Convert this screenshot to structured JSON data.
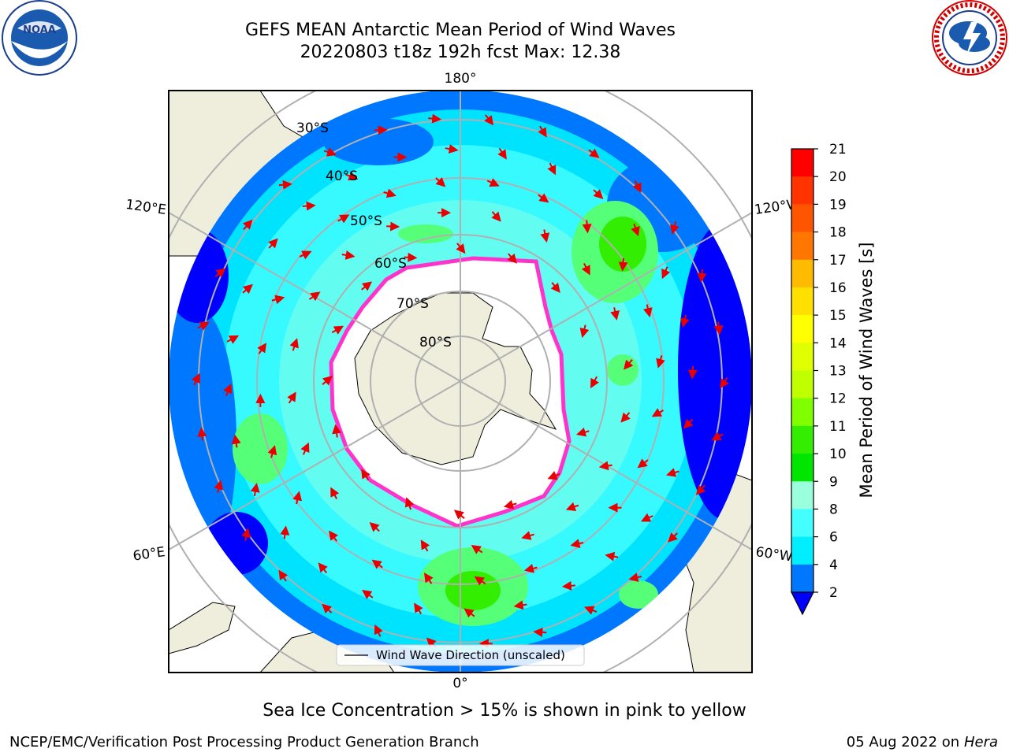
{
  "header": {
    "title_line1": "GEFS MEAN Antarctic Mean Period of Wind Waves",
    "title_line2": "20220803 t18z 192h fcst   Max: 12.38"
  },
  "logos": {
    "left": {
      "name": "NOAA",
      "ring_text": "NATIONAL OCEANIC AND ATMOSPHERIC ADMINISTRATION · U.S. DEPARTMENT OF COMMERCE"
    },
    "right": {
      "name": "National Weather Service",
      "ring_text": "NATIONAL WEATHER SERVICE"
    }
  },
  "map": {
    "projection": "south-polar-stereographic",
    "lat_labels": [
      "30°S",
      "40°S",
      "50°S",
      "60°S",
      "70°S",
      "80°S"
    ],
    "lon_labels": {
      "top": "180°",
      "bottom": "0°",
      "left_upper": "120°E",
      "left_lower": "60°E",
      "right_upper": "120°W",
      "right_lower": "60°W"
    },
    "legend_text": "Wind Wave Direction (unscaled)",
    "colors": {
      "land": "#efeddc",
      "ice": "#ffffff",
      "ice_edge": "#ff33cc",
      "arrow": "#e80000",
      "grid": "#b0b0b0"
    }
  },
  "colorbar": {
    "label": "Mean Period of Wind Waves [s]",
    "ticks": [
      "21",
      "20",
      "19",
      "18",
      "17",
      "16",
      "15",
      "14",
      "13",
      "12",
      "11",
      "10",
      "9",
      "8",
      "6",
      "4",
      "2"
    ],
    "colors": [
      "#ff0000",
      "#ff3300",
      "#ff5500",
      "#ff7700",
      "#ff9900",
      "#ffbb00",
      "#ffe000",
      "#ffff00",
      "#e0ff00",
      "#c0ff00",
      "#80ff00",
      "#33ee00",
      "#00e600",
      "#55ff77",
      "#99ffdd",
      "#44ffff",
      "#00eeff",
      "#0077ff",
      "#0000ff"
    ]
  },
  "footer": {
    "caption": "Sea Ice Concentration > 15% is shown in pink to yellow",
    "left": "NCEP/EMC/Verification Post Processing Product Generation Branch",
    "date": "05 Aug 2022 on",
    "host": "Hera"
  }
}
